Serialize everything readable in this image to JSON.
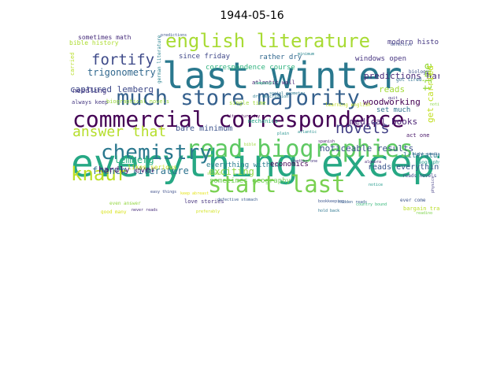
{
  "chart_data": {
    "type": "wordcloud",
    "title": "1944-05-16",
    "palette": "viridis",
    "words": [
      {
        "text": "everything except",
        "weight": 100,
        "color": "#26a884"
      },
      {
        "text": "last winter",
        "weight": 95,
        "color": "#2a788e"
      },
      {
        "text": "commercial correspondence",
        "weight": 80,
        "color": "#440154"
      },
      {
        "text": "much store majority",
        "weight": 75,
        "color": "#35608d"
      },
      {
        "text": "read biographies",
        "weight": 72,
        "color": "#5ec962"
      },
      {
        "text": "english literature",
        "weight": 65,
        "color": "#a8db34"
      },
      {
        "text": "chemistry",
        "weight": 62,
        "color": "#2a788e"
      },
      {
        "text": "start last",
        "weight": 62,
        "color": "#7ad151"
      },
      {
        "text": "knaur",
        "weight": 60,
        "color": "#bddf26"
      },
      {
        "text": "answer that",
        "weight": 45,
        "color": "#b5de2b"
      },
      {
        "text": "fortify",
        "weight": 45,
        "color": "#3e4a89"
      },
      {
        "text": "novels",
        "weight": 42,
        "color": "#424086"
      },
      {
        "text": "time",
        "weight": 32,
        "color": "#95d840"
      },
      {
        "text": "french literature",
        "weight": 30,
        "color": "#2c728e"
      },
      {
        "text": "trigonometry",
        "weight": 28,
        "color": "#31688e"
      },
      {
        "text": "lemberg",
        "weight": 28,
        "color": "#29af7f"
      },
      {
        "text": "woodworking",
        "weight": 26,
        "color": "#440154"
      },
      {
        "text": "noticeable results",
        "weight": 26,
        "color": "#3b528b"
      },
      {
        "text": "exciting",
        "weight": 26,
        "color": "#8fd744"
      },
      {
        "text": "predictions hardly",
        "weight": 26,
        "color": "#482878"
      },
      {
        "text": "medical books",
        "weight": 26,
        "color": "#482173"
      },
      {
        "text": "get carried",
        "weight": 24,
        "color": "#c2df23"
      },
      {
        "text": "reads",
        "weight": 24,
        "color": "#a2da37"
      },
      {
        "text": "hardly ever",
        "weight": 20,
        "color": "#481f70"
      },
      {
        "text": "captured lemberg",
        "weight": 20,
        "color": "#3e4989"
      },
      {
        "text": "likes serious",
        "weight": 20,
        "color": "#c8e020"
      },
      {
        "text": "reads everything",
        "weight": 20,
        "color": "#39568c"
      },
      {
        "text": "modern history",
        "weight": 18,
        "color": "#453882"
      },
      {
        "text": "bare minimum",
        "weight": 18,
        "color": "#3b528b"
      },
      {
        "text": "since friday",
        "weight": 18,
        "color": "#3f4788"
      },
      {
        "text": "correspondence course",
        "weight": 18,
        "color": "#2db27d"
      },
      {
        "text": "rather dry",
        "weight": 18,
        "color": "#31688e"
      },
      {
        "text": "everything within",
        "weight": 18,
        "color": "#287d8e"
      },
      {
        "text": "sometimes geography",
        "weight": 18,
        "color": "#73d056"
      },
      {
        "text": "economics",
        "weight": 18,
        "color": "#440154"
      },
      {
        "text": "set much",
        "weight": 18,
        "color": "#2d708e"
      },
      {
        "text": "literature",
        "weight": 18,
        "color": "#2a788e"
      },
      {
        "text": "needling",
        "weight": 18,
        "color": "#443983"
      },
      {
        "text": "windows open",
        "weight": 18,
        "color": "#463480"
      },
      {
        "text": "sometimes math",
        "weight": 16,
        "color": "#472d7b"
      },
      {
        "text": "bible history",
        "weight": 16,
        "color": "#addc30"
      },
      {
        "text": "always keep",
        "weight": 14,
        "color": "#453781"
      },
      {
        "text": "biographical novels",
        "weight": 14,
        "color": "#9bd93c"
      },
      {
        "text": "single time",
        "weight": 14,
        "color": "#a0da39"
      },
      {
        "text": "mechanics",
        "weight": 14,
        "color": "#20a386"
      },
      {
        "text": "atlantic wall",
        "weight": 14,
        "color": "#482576"
      },
      {
        "text": "learning english",
        "weight": 12,
        "color": "#c0df25"
      },
      {
        "text": "love stories",
        "weight": 14,
        "color": "#46337e"
      },
      {
        "text": "act one",
        "weight": 14,
        "color": "#481668"
      },
      {
        "text": "carried",
        "weight": 12,
        "color": "#b8de29"
      },
      {
        "text": "german literature",
        "weight": 12,
        "color": "#27808e"
      },
      {
        "text": "even answer",
        "weight": 12,
        "color": "#93d741"
      },
      {
        "text": "good many",
        "weight": 12,
        "color": "#d8e219"
      },
      {
        "text": "biology",
        "weight": 12,
        "color": "#3c508b"
      },
      {
        "text": "got tired",
        "weight": 12,
        "color": "#2e6e8e"
      },
      {
        "text": "ever come",
        "weight": 12,
        "color": "#3b528b"
      },
      {
        "text": "bargain trade",
        "weight": 12,
        "color": "#bade28"
      },
      {
        "text": "geography",
        "weight": 12,
        "color": "#1f988b"
      },
      {
        "text": "reads novels",
        "weight": 12,
        "color": "#3f4889"
      },
      {
        "text": "light reading",
        "weight": 12,
        "color": "#34618d"
      },
      {
        "text": "algebra",
        "weight": 12,
        "color": "#482677"
      },
      {
        "text": "atlantic",
        "weight": 12,
        "color": "#228d8d"
      },
      {
        "text": "spanish",
        "weight": 12,
        "color": "#481c6e"
      },
      {
        "text": "plain",
        "weight": 12,
        "color": "#21918c"
      },
      {
        "text": "minimum",
        "weight": 12,
        "color": "#25848e"
      },
      {
        "text": "predictions",
        "weight": 12,
        "color": "#3b518b"
      },
      {
        "text": "school",
        "weight": 12,
        "color": "#90d743"
      },
      {
        "text": "encyclopedia",
        "weight": 12,
        "color": "#365d8d"
      },
      {
        "text": "defective",
        "weight": 12,
        "color": "#3e4c8a"
      },
      {
        "text": "notice",
        "weight": 12,
        "color": "#1f998a"
      },
      {
        "text": "noticeable",
        "weight": 12,
        "color": "#8bd646"
      },
      {
        "text": "bible",
        "weight": 12,
        "color": "#9dd93b"
      },
      {
        "text": "quit",
        "weight": 12,
        "color": "#46327e"
      },
      {
        "text": "bookkeeping",
        "weight": 12,
        "color": "#3a548c"
      },
      {
        "text": "hold back",
        "weight": 12,
        "color": "#2b758e"
      },
      {
        "text": "campaign",
        "weight": 12,
        "color": "#27ad81"
      },
      {
        "text": "social geometry",
        "weight": 12,
        "color": "#2a788e"
      },
      {
        "text": "keep abreast",
        "weight": 12,
        "color": "#e5e419"
      },
      {
        "text": "physics",
        "weight": 12,
        "color": "#433e85"
      },
      {
        "text": "dry description",
        "weight": 12,
        "color": "#287c8e"
      },
      {
        "text": "literature dry",
        "weight": 12,
        "color": "#440154"
      },
      {
        "text": "preferably",
        "weight": 12,
        "color": "#d2e21b"
      },
      {
        "text": "easy things",
        "weight": 12,
        "color": "#3d4e8a"
      },
      {
        "text": "hidden reads",
        "weight": 12,
        "color": "#355e8d"
      },
      {
        "text": "never reads",
        "weight": 12,
        "color": "#472c7a"
      },
      {
        "text": "country bound",
        "weight": 12,
        "color": "#35b779"
      },
      {
        "text": "whether one",
        "weight": 12,
        "color": "#45337d"
      },
      {
        "text": "defective stomach",
        "weight": 12,
        "color": "#38598c"
      },
      {
        "text": "reading",
        "weight": 12,
        "color": "#7fd34e"
      }
    ]
  }
}
